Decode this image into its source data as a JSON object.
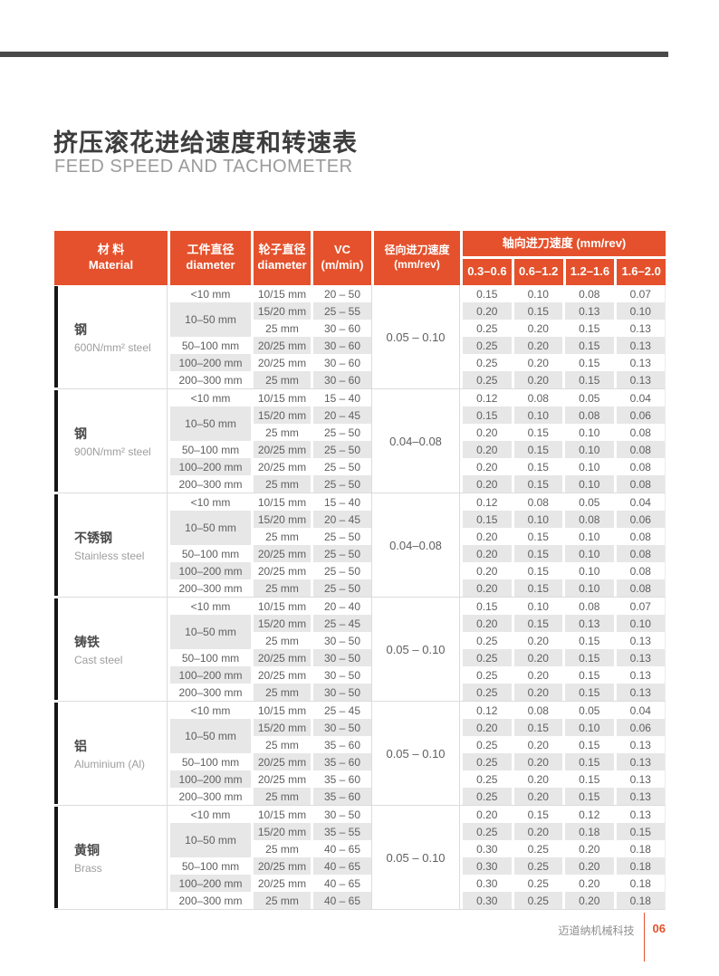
{
  "page": {
    "title_zh": "挤压滚花进给速度和转速表",
    "title_en": "FEED SPEED AND TACHOMETER",
    "footer": {
      "company": "迈道纳机械科技",
      "page_number": "06"
    }
  },
  "colors": {
    "accent_orange": "#e4512c",
    "header_bg": "#e4512c",
    "row_alt_gray": "#e7e7e7",
    "top_rule_gray": "#4a4a4a",
    "material_bar_black": "#161616"
  },
  "table": {
    "headers": {
      "material": {
        "zh": "材 料",
        "en": "Material"
      },
      "workpiece": {
        "zh": "工件直径",
        "en": "diameter"
      },
      "wheel": {
        "zh": "轮子直径",
        "en": "diameter"
      },
      "vc": {
        "line1": "VC",
        "line2": "(m/min)"
      },
      "radial": {
        "zh": "径向进刀速度",
        "unit": "(mm/rev)"
      },
      "axial": {
        "title": "轴向进刀速度 (mm/rev)",
        "ranges": [
          "0.3–0.6",
          "0.6–1.2",
          "1.2–1.6",
          "1.6–2.0"
        ]
      }
    },
    "groups": [
      {
        "material_zh": "钢",
        "material_en": "600N/mm² steel",
        "radial_feed": "0.05 – 0.10",
        "rows": [
          {
            "workpiece": "<10 mm",
            "span": 1,
            "wheel": "10/15 mm",
            "vc": "20 – 50",
            "axial": [
              "0.15",
              "0.10",
              "0.08",
              "0.07"
            ]
          },
          {
            "workpiece": "10–50 mm",
            "span": 2,
            "wheel": "15/20 mm",
            "vc": "25 – 55",
            "axial": [
              "0.20",
              "0.15",
              "0.13",
              "0.10"
            ]
          },
          {
            "wheel": "25 mm",
            "vc": "30 – 60",
            "axial": [
              "0.25",
              "0.20",
              "0.15",
              "0.13"
            ]
          },
          {
            "workpiece": "50–100 mm",
            "span": 1,
            "wheel": "20/25 mm",
            "vc": "30 – 60",
            "axial": [
              "0.25",
              "0.20",
              "0.15",
              "0.13"
            ]
          },
          {
            "workpiece": "100–200 mm",
            "span": 1,
            "wheel": "20/25 mm",
            "vc": "30 – 60",
            "axial": [
              "0.25",
              "0.20",
              "0.15",
              "0.13"
            ]
          },
          {
            "workpiece": "200–300 mm",
            "span": 1,
            "wheel": "25 mm",
            "vc": "30 – 60",
            "axial": [
              "0.25",
              "0.20",
              "0.15",
              "0.13"
            ]
          }
        ]
      },
      {
        "material_zh": "钢",
        "material_en": "900N/mm² steel",
        "radial_feed": "0.04–0.08",
        "rows": [
          {
            "workpiece": "<10 mm",
            "span": 1,
            "wheel": "10/15 mm",
            "vc": "15 – 40",
            "axial": [
              "0.12",
              "0.08",
              "0.05",
              "0.04"
            ]
          },
          {
            "workpiece": "10–50 mm",
            "span": 2,
            "wheel": "15/20 mm",
            "vc": "20 – 45",
            "axial": [
              "0.15",
              "0.10",
              "0.08",
              "0.06"
            ]
          },
          {
            "wheel": "25 mm",
            "vc": "25 – 50",
            "axial": [
              "0.20",
              "0.15",
              "0.10",
              "0.08"
            ]
          },
          {
            "workpiece": "50–100 mm",
            "span": 1,
            "wheel": "20/25 mm",
            "vc": "25 – 50",
            "axial": [
              "0.20",
              "0.15",
              "0.10",
              "0.08"
            ]
          },
          {
            "workpiece": "100–200 mm",
            "span": 1,
            "wheel": "20/25 mm",
            "vc": "25 – 50",
            "axial": [
              "0.20",
              "0.15",
              "0.10",
              "0.08"
            ]
          },
          {
            "workpiece": "200–300 mm",
            "span": 1,
            "wheel": "25 mm",
            "vc": "25 – 50",
            "axial": [
              "0.20",
              "0.15",
              "0.10",
              "0.08"
            ]
          }
        ]
      },
      {
        "material_zh": "不锈钢",
        "material_en": "Stainless steel",
        "radial_feed": "0.04–0.08",
        "rows": [
          {
            "workpiece": "<10 mm",
            "span": 1,
            "wheel": "10/15 mm",
            "vc": "15 – 40",
            "axial": [
              "0.12",
              "0.08",
              "0.05",
              "0.04"
            ]
          },
          {
            "workpiece": "10–50 mm",
            "span": 2,
            "wheel": "15/20 mm",
            "vc": "20 – 45",
            "axial": [
              "0.15",
              "0.10",
              "0.08",
              "0.06"
            ]
          },
          {
            "wheel": "25 mm",
            "vc": "25 – 50",
            "axial": [
              "0.20",
              "0.15",
              "0.10",
              "0.08"
            ]
          },
          {
            "workpiece": "50–100 mm",
            "span": 1,
            "wheel": "20/25 mm",
            "vc": "25 – 50",
            "axial": [
              "0.20",
              "0.15",
              "0.10",
              "0.08"
            ]
          },
          {
            "workpiece": "100–200 mm",
            "span": 1,
            "wheel": "20/25 mm",
            "vc": "25 – 50",
            "axial": [
              "0.20",
              "0.15",
              "0.10",
              "0.08"
            ]
          },
          {
            "workpiece": "200–300 mm",
            "span": 1,
            "wheel": "25 mm",
            "vc": "25 – 50",
            "axial": [
              "0.20",
              "0.15",
              "0.10",
              "0.08"
            ]
          }
        ]
      },
      {
        "material_zh": "铸铁",
        "material_en": "Cast steel",
        "radial_feed": "0.05 – 0.10",
        "rows": [
          {
            "workpiece": "<10 mm",
            "span": 1,
            "wheel": "10/15 mm",
            "vc": "20 – 40",
            "axial": [
              "0.15",
              "0.10",
              "0.08",
              "0.07"
            ]
          },
          {
            "workpiece": "10–50 mm",
            "span": 2,
            "wheel": "15/20 mm",
            "vc": "25 – 45",
            "axial": [
              "0.20",
              "0.15",
              "0.13",
              "0.10"
            ]
          },
          {
            "wheel": "25 mm",
            "vc": "30 – 50",
            "axial": [
              "0.25",
              "0.20",
              "0.15",
              "0.13"
            ]
          },
          {
            "workpiece": "50–100 mm",
            "span": 1,
            "wheel": "20/25 mm",
            "vc": "30 – 50",
            "axial": [
              "0.25",
              "0.20",
              "0.15",
              "0.13"
            ]
          },
          {
            "workpiece": "100–200 mm",
            "span": 1,
            "wheel": "20/25 mm",
            "vc": "30 – 50",
            "axial": [
              "0.25",
              "0.20",
              "0.15",
              "0.13"
            ]
          },
          {
            "workpiece": "200–300 mm",
            "span": 1,
            "wheel": "25 mm",
            "vc": "30 – 50",
            "axial": [
              "0.25",
              "0.20",
              "0.15",
              "0.13"
            ]
          }
        ]
      },
      {
        "material_zh": "铝",
        "material_en": "Aluminium (Al)",
        "radial_feed": "0.05 – 0.10",
        "rows": [
          {
            "workpiece": "<10 mm",
            "span": 1,
            "wheel": "10/15 mm",
            "vc": "25 – 45",
            "axial": [
              "0.12",
              "0.08",
              "0.05",
              "0.04"
            ]
          },
          {
            "workpiece": "10–50 mm",
            "span": 2,
            "wheel": "15/20 mm",
            "vc": "30 – 50",
            "axial": [
              "0.20",
              "0.15",
              "0.10",
              "0.06"
            ]
          },
          {
            "wheel": "25 mm",
            "vc": "35 – 60",
            "axial": [
              "0.25",
              "0.20",
              "0.15",
              "0.13"
            ]
          },
          {
            "workpiece": "50–100 mm",
            "span": 1,
            "wheel": "20/25 mm",
            "vc": "35 – 60",
            "axial": [
              "0.25",
              "0.20",
              "0.15",
              "0.13"
            ]
          },
          {
            "workpiece": "100–200 mm",
            "span": 1,
            "wheel": "20/25 mm",
            "vc": "35 – 60",
            "axial": [
              "0.25",
              "0.20",
              "0.15",
              "0.13"
            ]
          },
          {
            "workpiece": "200–300 mm",
            "span": 1,
            "wheel": "25 mm",
            "vc": "35 – 60",
            "axial": [
              "0.25",
              "0.20",
              "0.15",
              "0.13"
            ]
          }
        ]
      },
      {
        "material_zh": "黄铜",
        "material_en": "Brass",
        "radial_feed": "0.05 – 0.10",
        "rows": [
          {
            "workpiece": "<10 mm",
            "span": 1,
            "wheel": "10/15 mm",
            "vc": "30 – 50",
            "axial": [
              "0.20",
              "0.15",
              "0.12",
              "0.13"
            ]
          },
          {
            "workpiece": "10–50 mm",
            "span": 2,
            "wheel": "15/20 mm",
            "vc": "35 – 55",
            "axial": [
              "0.25",
              "0.20",
              "0.18",
              "0.15"
            ]
          },
          {
            "wheel": "25 mm",
            "vc": "40 – 65",
            "axial": [
              "0.30",
              "0.25",
              "0.20",
              "0.18"
            ]
          },
          {
            "workpiece": "50–100 mm",
            "span": 1,
            "wheel": "20/25 mm",
            "vc": "40 – 65",
            "axial": [
              "0.30",
              "0.25",
              "0.20",
              "0.18"
            ]
          },
          {
            "workpiece": "100–200 mm",
            "span": 1,
            "wheel": "20/25 mm",
            "vc": "40 – 65",
            "axial": [
              "0.30",
              "0.25",
              "0.20",
              "0.18"
            ]
          },
          {
            "workpiece": "200–300 mm",
            "span": 1,
            "wheel": "25 mm",
            "vc": "40 – 65",
            "axial": [
              "0.30",
              "0.25",
              "0.20",
              "0.18"
            ]
          }
        ]
      }
    ]
  }
}
